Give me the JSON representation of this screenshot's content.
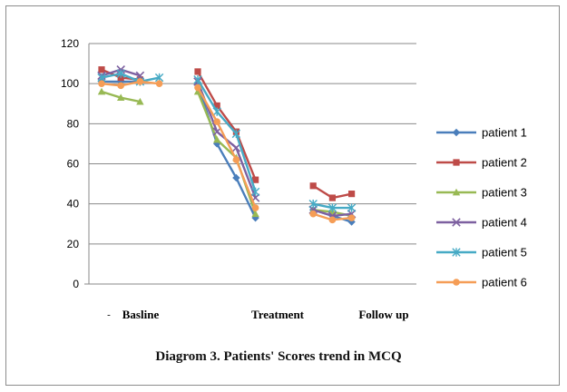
{
  "chart_data": {
    "type": "line",
    "title": "",
    "xlabel": "",
    "ylabel": "",
    "ylim": [
      0,
      120
    ],
    "yticks": [
      0,
      20,
      40,
      60,
      80,
      100,
      120
    ],
    "grid": true,
    "legend_position": "right",
    "groups": [
      {
        "label": "Basline",
        "points": 4
      },
      {
        "label": "Treatment",
        "points": 4
      },
      {
        "label": "Follow up",
        "points": 3
      }
    ],
    "series": [
      {
        "name": "patient 1",
        "color": "#4a7ebb",
        "marker": "diamond",
        "values": [
          101,
          101,
          101,
          null,
          null,
          100,
          70,
          53,
          33,
          null,
          null,
          37,
          34,
          31
        ]
      },
      {
        "name": "patient 2",
        "color": "#be4b48",
        "marker": "square",
        "values": [
          107,
          103,
          102,
          null,
          null,
          106,
          89,
          76,
          52,
          null,
          null,
          49,
          43,
          45
        ]
      },
      {
        "name": "patient 3",
        "color": "#98b954",
        "marker": "triangle",
        "values": [
          96,
          93,
          91,
          null,
          null,
          96,
          72,
          63,
          35,
          null,
          null,
          37,
          36,
          34
        ]
      },
      {
        "name": "patient 4",
        "color": "#7d60a0",
        "marker": "x",
        "values": [
          104,
          107,
          104,
          null,
          null,
          101,
          76,
          68,
          43,
          null,
          null,
          37,
          34,
          35
        ]
      },
      {
        "name": "patient 5",
        "color": "#46aac5",
        "marker": "star",
        "values": [
          103,
          105,
          101,
          103,
          null,
          102,
          86,
          75,
          46,
          null,
          null,
          40,
          38,
          38
        ]
      },
      {
        "name": "patient 6",
        "color": "#f59d56",
        "marker": "circle",
        "values": [
          100,
          99,
          101,
          100,
          null,
          98,
          81,
          62,
          38,
          null,
          null,
          35,
          32,
          33
        ]
      }
    ]
  },
  "caption": "Diagrom 3. Patients' Scores trend in MCQ",
  "stray_mark": "-"
}
